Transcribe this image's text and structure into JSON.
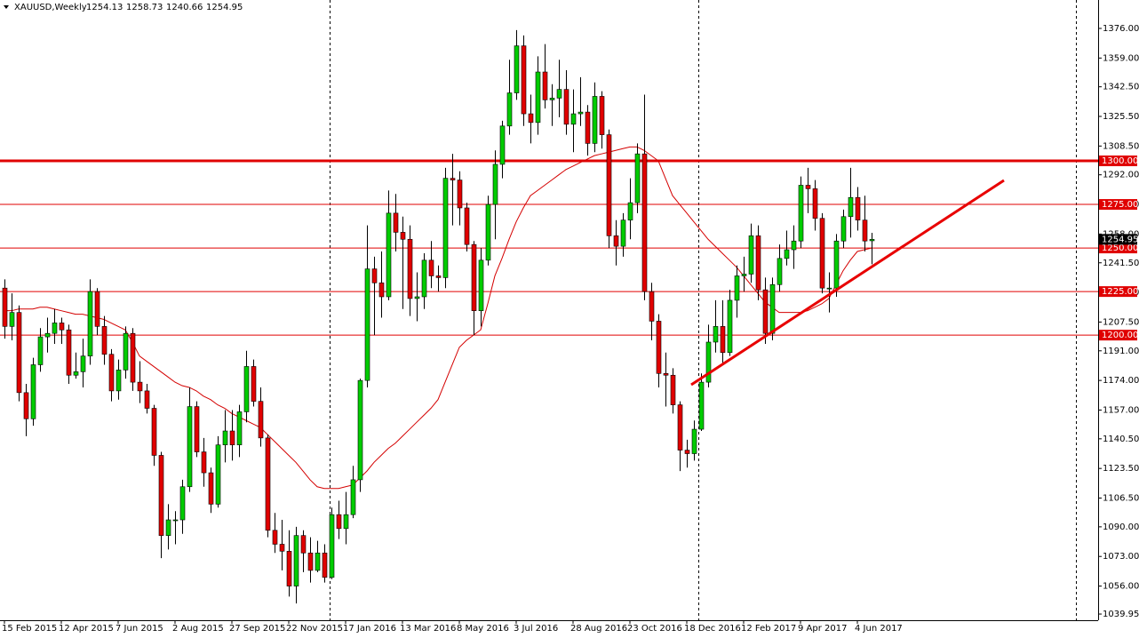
{
  "chart_data": {
    "type": "candlestick",
    "symbol": "XAUUSD,Weekly",
    "up_color": "#00cc00",
    "down_color": "#e00000",
    "ma_color": "#d40000",
    "categories": [
      "15 Feb 2015",
      null,
      null,
      null,
      null,
      null,
      null,
      null,
      "12 Apr 2015",
      null,
      null,
      null,
      null,
      null,
      null,
      null,
      "7 Jun 2015",
      null,
      null,
      null,
      null,
      null,
      null,
      null,
      "2 Aug 2015",
      null,
      null,
      null,
      null,
      null,
      null,
      null,
      "27 Sep 2015",
      null,
      null,
      null,
      null,
      null,
      null,
      null,
      "22 Nov 2015",
      null,
      null,
      null,
      null,
      null,
      null,
      null,
      "17 Jan 2016",
      null,
      null,
      null,
      null,
      null,
      null,
      null,
      "13 Mar 2016",
      null,
      null,
      null,
      null,
      null,
      null,
      null,
      "8 May 2016",
      null,
      null,
      null,
      null,
      null,
      null,
      null,
      "3 Jul 2016",
      null,
      null,
      null,
      null,
      null,
      null,
      null,
      "28 Aug 2016",
      null,
      null,
      null,
      null,
      null,
      null,
      null,
      "23 Oct 2016",
      null,
      null,
      null,
      null,
      null,
      null,
      null,
      "18 Dec 2016",
      null,
      null,
      null,
      null,
      null,
      null,
      null,
      "12 Feb 2017",
      null,
      null,
      null,
      null,
      null,
      null,
      null,
      "9 Apr 2017",
      null,
      null,
      null,
      null,
      null,
      null,
      null,
      "4 Jun 2017",
      null,
      null
    ],
    "open": [
      1227,
      1205,
      1213,
      1167,
      1152,
      1183,
      1199,
      1201,
      1207,
      1203,
      1177,
      1179,
      1188,
      1225,
      1205,
      1189,
      1168,
      1180,
      1201,
      1173,
      1168,
      1158,
      1131,
      1085,
      1094,
      1094,
      1113,
      1159,
      1133,
      1121,
      1103,
      1137,
      1145,
      1137,
      1156,
      1182,
      1162,
      1141,
      1088,
      1080,
      1076,
      1056,
      1085,
      1075,
      1065,
      1075,
      1061,
      1097,
      1089,
      1097,
      1117,
      1174,
      1238,
      1230,
      1222,
      1270,
      1259,
      1255,
      1221,
      1222,
      1243,
      1234,
      1233,
      1290,
      1289,
      1273,
      1252,
      1214,
      1243,
      1275,
      1298,
      1320,
      1339,
      1366,
      1327,
      1322,
      1351,
      1335,
      1336,
      1341,
      1321,
      1327,
      1328,
      1310,
      1337,
      1315,
      1257,
      1251,
      1266,
      1276,
      1304,
      1225,
      1208,
      1178,
      1177,
      1160,
      1134,
      1132,
      1146,
      1173,
      1196,
      1205,
      1190,
      1220,
      1234,
      1235,
      1257,
      1226,
      1201,
      1229,
      1244,
      1249,
      1254,
      1286,
      1284,
      1267,
      1227,
      1227,
      1254,
      1268,
      1279,
      1266,
      1254.13
    ],
    "high": [
      1232,
      1224,
      1217,
      1172,
      1187,
      1204,
      1210,
      1215,
      1210,
      1206,
      1190,
      1198,
      1232,
      1227,
      1211,
      1192,
      1186,
      1205,
      1204,
      1185,
      1172,
      1160,
      1133,
      1103,
      1099,
      1117,
      1170,
      1162,
      1141,
      1124,
      1142,
      1157,
      1157,
      1160,
      1191,
      1186,
      1170,
      1143,
      1098,
      1094,
      1088,
      1090,
      1088,
      1084,
      1082,
      1080,
      1101,
      1105,
      1110,
      1125,
      1175,
      1263,
      1245,
      1248,
      1283,
      1281,
      1268,
      1263,
      1236,
      1247,
      1254,
      1240,
      1296,
      1304,
      1294,
      1276,
      1254,
      1250,
      1280,
      1306,
      1323,
      1358,
      1375,
      1372,
      1338,
      1360,
      1367,
      1344,
      1358,
      1352,
      1341,
      1348,
      1332,
      1345,
      1340,
      1318,
      1266,
      1270,
      1290,
      1310,
      1338,
      1230,
      1212,
      1190,
      1181,
      1162,
      1140,
      1151,
      1178,
      1206,
      1220,
      1220,
      1226,
      1240,
      1245,
      1264,
      1263,
      1233,
      1233,
      1252,
      1260,
      1263,
      1291,
      1296,
      1289,
      1270,
      1236,
      1258,
      1272,
      1296,
      1285,
      1280,
      1258.73
    ],
    "low": [
      1198,
      1197,
      1162,
      1142,
      1148,
      1179,
      1190,
      1195,
      1195,
      1172,
      1175,
      1170,
      1183,
      1200,
      1183,
      1162,
      1163,
      1175,
      1168,
      1161,
      1155,
      1125,
      1072,
      1077,
      1080,
      1086,
      1110,
      1130,
      1113,
      1098,
      1101,
      1127,
      1128,
      1130,
      1150,
      1159,
      1136,
      1084,
      1075,
      1065,
      1050,
      1046,
      1064,
      1058,
      1064,
      1058,
      1060,
      1083,
      1080,
      1095,
      1110,
      1170,
      1200,
      1210,
      1220,
      1248,
      1215,
      1211,
      1208,
      1215,
      1227,
      1225,
      1227,
      1263,
      1263,
      1248,
      1200,
      1205,
      1240,
      1255,
      1290,
      1315,
      1335,
      1320,
      1310,
      1315,
      1330,
      1320,
      1325,
      1315,
      1305,
      1320,
      1303,
      1305,
      1307,
      1250,
      1240,
      1245,
      1255,
      1270,
      1220,
      1197,
      1170,
      1159,
      1155,
      1122,
      1124,
      1128,
      1145,
      1170,
      1190,
      1183,
      1188,
      1210,
      1225,
      1230,
      1220,
      1195,
      1197,
      1225,
      1240,
      1238,
      1250,
      1270,
      1260,
      1224,
      1213,
      1222,
      1250,
      1256,
      1260,
      1248,
      1240.66
    ],
    "close": [
      1205,
      1213,
      1167,
      1152,
      1183,
      1199,
      1201,
      1207,
      1203,
      1177,
      1179,
      1188,
      1225,
      1205,
      1189,
      1168,
      1180,
      1201,
      1173,
      1168,
      1158,
      1131,
      1085,
      1094,
      1094,
      1113,
      1159,
      1133,
      1121,
      1103,
      1137,
      1145,
      1137,
      1156,
      1182,
      1162,
      1141,
      1088,
      1080,
      1076,
      1056,
      1085,
      1075,
      1065,
      1075,
      1061,
      1097,
      1089,
      1097,
      1117,
      1174,
      1238,
      1230,
      1222,
      1270,
      1259,
      1255,
      1221,
      1222,
      1243,
      1234,
      1233,
      1290,
      1289,
      1273,
      1252,
      1214,
      1243,
      1275,
      1298,
      1320,
      1339,
      1366,
      1327,
      1322,
      1351,
      1335,
      1336,
      1341,
      1321,
      1327,
      1328,
      1310,
      1337,
      1315,
      1257,
      1251,
      1266,
      1276,
      1304,
      1225,
      1208,
      1178,
      1177,
      1160,
      1134,
      1132,
      1146,
      1173,
      1196,
      1205,
      1190,
      1220,
      1234,
      1235,
      1257,
      1226,
      1201,
      1229,
      1244,
      1249,
      1254,
      1286,
      1284,
      1267,
      1227,
      1227,
      1254,
      1268,
      1279,
      1266,
      1254,
      1254.95
    ],
    "ma": [
      1214,
      1214,
      1215,
      1215,
      1215,
      1216,
      1216,
      1215,
      1214,
      1213,
      1212,
      1212,
      1211,
      1210,
      1209,
      1207,
      1205,
      1203,
      1196,
      1188,
      1185,
      1182,
      1179,
      1176,
      1173,
      1171,
      1170,
      1168,
      1165,
      1163,
      1160,
      1158,
      1155,
      1153,
      1151,
      1149,
      1147,
      1143,
      1139,
      1135,
      1131,
      1127,
      1122,
      1117,
      1113,
      1112,
      1112,
      1112,
      1113,
      1114,
      1118,
      1122,
      1127,
      1131,
      1135,
      1138,
      1142,
      1146,
      1150,
      1154,
      1158,
      1163,
      1173,
      1183,
      1193,
      1197,
      1200,
      1203,
      1218,
      1234,
      1244,
      1255,
      1265,
      1273,
      1280,
      1283,
      1286,
      1289,
      1292,
      1295,
      1297,
      1299,
      1301,
      1303,
      1304,
      1305,
      1306,
      1307,
      1308,
      1308,
      1306,
      1303,
      1300,
      1290,
      1280,
      1275,
      1270,
      1265,
      1260,
      1255,
      1251,
      1247,
      1243,
      1239,
      1234,
      1229,
      1224,
      1219,
      1216,
      1213,
      1213,
      1213,
      1213,
      1214,
      1216,
      1218,
      1221,
      1229,
      1237,
      1243,
      1248,
      1249,
      1250
    ],
    "ylim": [
      1036.4,
      1392.3
    ],
    "yticks": [
      {
        "value": 1376,
        "label": "1376.00"
      },
      {
        "value": 1359,
        "label": "1359.00"
      },
      {
        "value": 1342.5,
        "label": "1342.50"
      },
      {
        "value": 1325.5,
        "label": "1325.50"
      },
      {
        "value": 1308.5,
        "label": "1308.50"
      },
      {
        "value": 1292,
        "label": "1292.00"
      },
      {
        "value": 1275,
        "label": "1275.00"
      },
      {
        "value": 1258,
        "label": "1258.00"
      },
      {
        "value": 1241.5,
        "label": "1241.50"
      },
      {
        "value": 1224.5,
        "label": "1224.50"
      },
      {
        "value": 1207.5,
        "label": "1207.50"
      },
      {
        "value": 1191,
        "label": "1191.00"
      },
      {
        "value": 1174,
        "label": "1174.00"
      },
      {
        "value": 1157,
        "label": "1157.00"
      },
      {
        "value": 1140.5,
        "label": "1140.50"
      },
      {
        "value": 1123.5,
        "label": "1123.50"
      },
      {
        "value": 1106.5,
        "label": "1106.50"
      },
      {
        "value": 1090,
        "label": "1090.00"
      },
      {
        "value": 1073,
        "label": "1073.00"
      },
      {
        "value": 1056,
        "label": "1056.00"
      },
      {
        "value": 1039.95,
        "label": "1039.95"
      }
    ],
    "levels": [
      {
        "value": 1300,
        "label": "1300.00",
        "bold": true
      },
      {
        "value": 1275,
        "label": "1275.00"
      },
      {
        "value": 1250,
        "label": "1250.00"
      },
      {
        "value": 1225,
        "label": "1225.00"
      },
      {
        "value": 1200,
        "label": "1200.00"
      }
    ],
    "trendline": {
      "values": [
        1171.5,
        1288.8
      ],
      "color": "#e80000"
    }
  }
}
